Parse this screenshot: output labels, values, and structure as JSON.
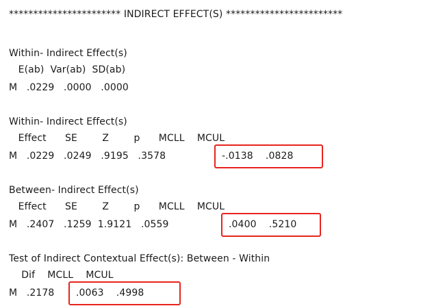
{
  "header": {
    "text": "*********************** INDIRECT EFFECT(S) ************************"
  },
  "within_var": {
    "title": "Within- Indirect Effect(s)",
    "columns": "   E(ab)  Var(ab)  SD(ab)",
    "row": "M   .0229   .0000   .0000"
  },
  "within_ci": {
    "title": "Within- Indirect Effect(s)",
    "columns": "   Effect      SE        Z        p      MCLL    MCUL",
    "row_stats": "M   .0229   .0249   .9195   .3578",
    "ci": "-.0138    .0828"
  },
  "between_ci": {
    "title": "Between- Indirect Effect(s)",
    "columns": "   Effect      SE        Z        p      MCLL    MCUL",
    "row_stats": "M   .2407   .1259  1.9121   .0559",
    "ci": ".0400    .5210"
  },
  "contextual": {
    "title": "Test of Indirect Contextual Effect(s): Between - Within",
    "columns": "    Dif    MCLL    MCUL",
    "row_stats": "M   .2178",
    "ci": ".0063    .4998"
  },
  "highlight_color": "#e8231d"
}
